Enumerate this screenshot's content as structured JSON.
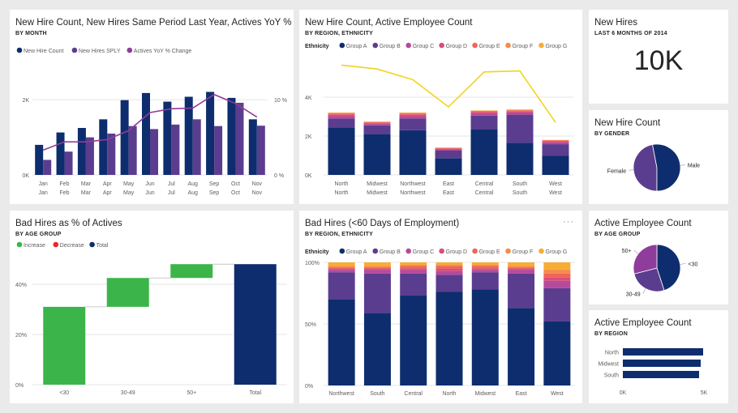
{
  "tiles": {
    "t1": {
      "title": "New Hire Count, New Hires Same Period Last Year, Actives YoY % C...",
      "subtitle": "BY MONTH"
    },
    "t2": {
      "title": "New Hire Count, Active Employee Count",
      "subtitle": "BY REGION, ETHNICITY"
    },
    "t3": {
      "title": "New Hires",
      "subtitle": "LAST 6 MONTHS OF 2014",
      "kpi": "10K"
    },
    "t4": {
      "title": "New Hire Count",
      "subtitle": "BY GENDER"
    },
    "t5": {
      "title": "Bad Hires as % of Actives",
      "subtitle": "BY AGE GROUP"
    },
    "t6": {
      "title": "Bad Hires (<60 Days of Employment)",
      "subtitle": "BY REGION, ETHNICITY",
      "more": "···"
    },
    "t7": {
      "title": "Active Employee Count",
      "subtitle": "BY AGE GROUP"
    },
    "t8": {
      "title": "Active Employee Count",
      "subtitle": "BY REGION"
    }
  },
  "colors": {
    "navy": "#0e2d6e",
    "purple": "#5b3d8f",
    "magenta": "#8e3d9b",
    "groupC": "#b64a9c",
    "groupD": "#d84f7a",
    "groupE": "#f0645a",
    "groupF": "#f58b4b",
    "groupG": "#f7ad34",
    "yellow": "#f2d41b",
    "green": "#3bb54a",
    "red": "#e8262e"
  },
  "chart_data": [
    {
      "type": "bar",
      "legend": [
        "New Hire Count",
        "New Hires SPLY",
        "Actives YoY % Change"
      ],
      "categories": [
        [
          "Jan",
          "Jan"
        ],
        [
          "Feb",
          "Feb"
        ],
        [
          "Mar",
          "Mar"
        ],
        [
          "Apr",
          "Apr"
        ],
        [
          "May",
          "May"
        ],
        [
          "Jun",
          "Jun"
        ],
        [
          "Jul",
          "Jul"
        ],
        [
          "Aug",
          "Aug"
        ],
        [
          "Sep",
          "Sep"
        ],
        [
          "Oct",
          "Oct"
        ],
        [
          "Nov",
          "Nov"
        ]
      ],
      "series": [
        {
          "name": "New Hire Count",
          "values": [
            800,
            1130,
            1250,
            1480,
            1990,
            2180,
            1950,
            2080,
            2210,
            2050,
            1480
          ]
        },
        {
          "name": "New Hires SPLY",
          "values": [
            400,
            620,
            1000,
            1100,
            1300,
            1220,
            1340,
            1480,
            1300,
            1920,
            1310
          ]
        },
        {
          "name": "Actives YoY % Change",
          "values": [
            3.3,
            4.4,
            4.4,
            4.7,
            5.9,
            8.3,
            8.8,
            8.9,
            10.7,
            9.5,
            7.7
          ]
        }
      ],
      "y_ticks": [
        "0K",
        "2K"
      ],
      "y2_ticks": [
        "0 %",
        "10 %"
      ],
      "ylim": [
        0,
        2500
      ],
      "y2lim": [
        0,
        12.5
      ]
    },
    {
      "type": "bar",
      "legend_title": "Ethnicity",
      "legend": [
        "Group A",
        "Group B",
        "Group C",
        "Group D",
        "Group E",
        "Group F",
        "Group G"
      ],
      "categories": [
        [
          "North",
          "North"
        ],
        [
          "Midwest",
          "Midwest"
        ],
        [
          "Northwest",
          "Northwest"
        ],
        [
          "East",
          "East"
        ],
        [
          "Central",
          "Central"
        ],
        [
          "South",
          "South"
        ],
        [
          "West",
          "West"
        ]
      ],
      "stacks": [
        [
          2450,
          450,
          120,
          80,
          60,
          30,
          20
        ],
        [
          2100,
          450,
          80,
          50,
          40,
          20,
          10
        ],
        [
          2300,
          600,
          120,
          80,
          60,
          30,
          20
        ],
        [
          850,
          400,
          60,
          40,
          30,
          20,
          10
        ],
        [
          2350,
          700,
          120,
          60,
          40,
          30,
          20
        ],
        [
          1650,
          1450,
          110,
          70,
          40,
          30,
          20
        ],
        [
          980,
          600,
          90,
          60,
          40,
          20,
          10
        ]
      ],
      "line": {
        "name": "Active Employee Count",
        "values": [
          5650,
          5450,
          4900,
          3500,
          5300,
          5350,
          2700
        ]
      },
      "y_ticks": [
        "0K",
        "2K",
        "4K"
      ],
      "ylim": [
        0,
        6000
      ]
    },
    {
      "type": "pie",
      "slices": [
        {
          "label": "Female",
          "value": 47
        },
        {
          "label": "Male",
          "value": 53
        }
      ]
    },
    {
      "type": "bar",
      "subtype": "waterfall",
      "legend": [
        "Increase",
        "Decrease",
        "Total"
      ],
      "categories": [
        "<30",
        "30-49",
        "50+",
        "Total"
      ],
      "steps": [
        31,
        11.5,
        5.5,
        48
      ],
      "y_ticks": [
        "0%",
        "20%",
        "40%"
      ],
      "ylim": [
        0,
        50
      ]
    },
    {
      "type": "bar",
      "subtype": "100% stacked",
      "legend_title": "Ethnicity",
      "legend": [
        "Group A",
        "Group B",
        "Group C",
        "Group D",
        "Group E",
        "Group F",
        "Group G"
      ],
      "categories": [
        "Northwest",
        "South",
        "Central",
        "North",
        "Midwest",
        "East",
        "West"
      ],
      "stacks": [
        [
          70,
          22,
          2,
          1,
          1,
          1,
          3
        ],
        [
          59,
          32,
          3,
          1,
          1,
          1,
          3
        ],
        [
          73,
          18,
          3,
          1,
          2,
          1,
          2
        ],
        [
          76,
          14,
          3,
          2,
          2,
          1,
          2
        ],
        [
          78,
          14,
          2,
          1,
          2,
          1,
          2
        ],
        [
          63,
          28,
          3,
          1,
          1,
          1,
          3
        ],
        [
          52,
          27,
          6,
          3,
          3,
          3,
          6
        ]
      ],
      "y_ticks": [
        "100%",
        "50%",
        "0%"
      ]
    },
    {
      "type": "pie",
      "slices": [
        {
          "label": "<30",
          "value": 45
        },
        {
          "label": "30-49",
          "value": 26
        },
        {
          "label": "50+",
          "value": 29
        }
      ]
    },
    {
      "type": "bar",
      "orientation": "horizontal",
      "categories": [
        "North",
        "Midwest",
        "South"
      ],
      "values": [
        4950,
        4800,
        4700
      ],
      "x_ticks": [
        "0K",
        "5K"
      ],
      "xlim": [
        0,
        5000
      ]
    }
  ]
}
